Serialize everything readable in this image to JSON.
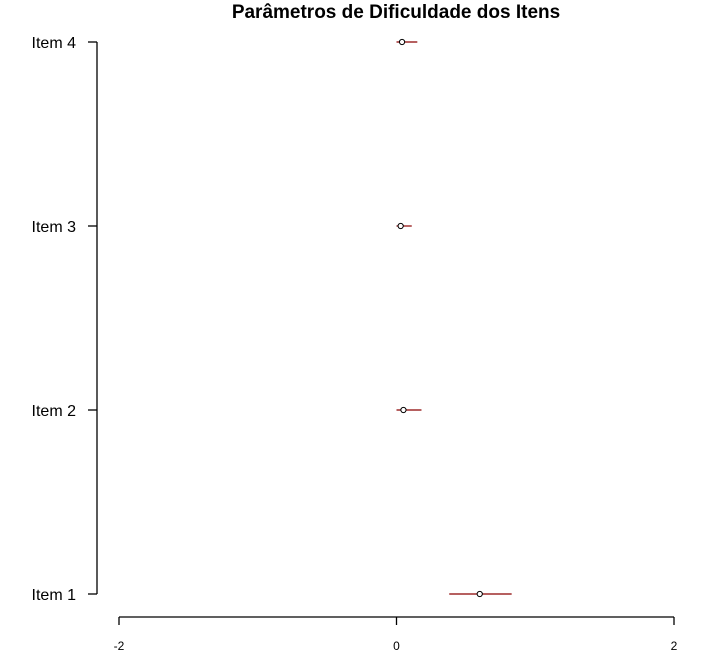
{
  "chart_data": {
    "type": "scatter",
    "title": "Parâmetros de Dificuldade dos Itens",
    "xlabel": "",
    "ylabel": "",
    "xlim": [
      -2,
      2
    ],
    "x_ticks": [
      "-2",
      "0",
      "2"
    ],
    "categories": [
      "Item 1",
      "Item 2",
      "Item 3",
      "Item 4"
    ],
    "estimates": [
      0.6,
      0.05,
      0.03,
      0.04
    ],
    "ci_lower": [
      0.38,
      0.0,
      0.0,
      0.0
    ],
    "ci_upper": [
      0.83,
      0.18,
      0.11,
      0.15
    ],
    "colors": {
      "interval": "#8b0000",
      "point": "#000000"
    }
  }
}
